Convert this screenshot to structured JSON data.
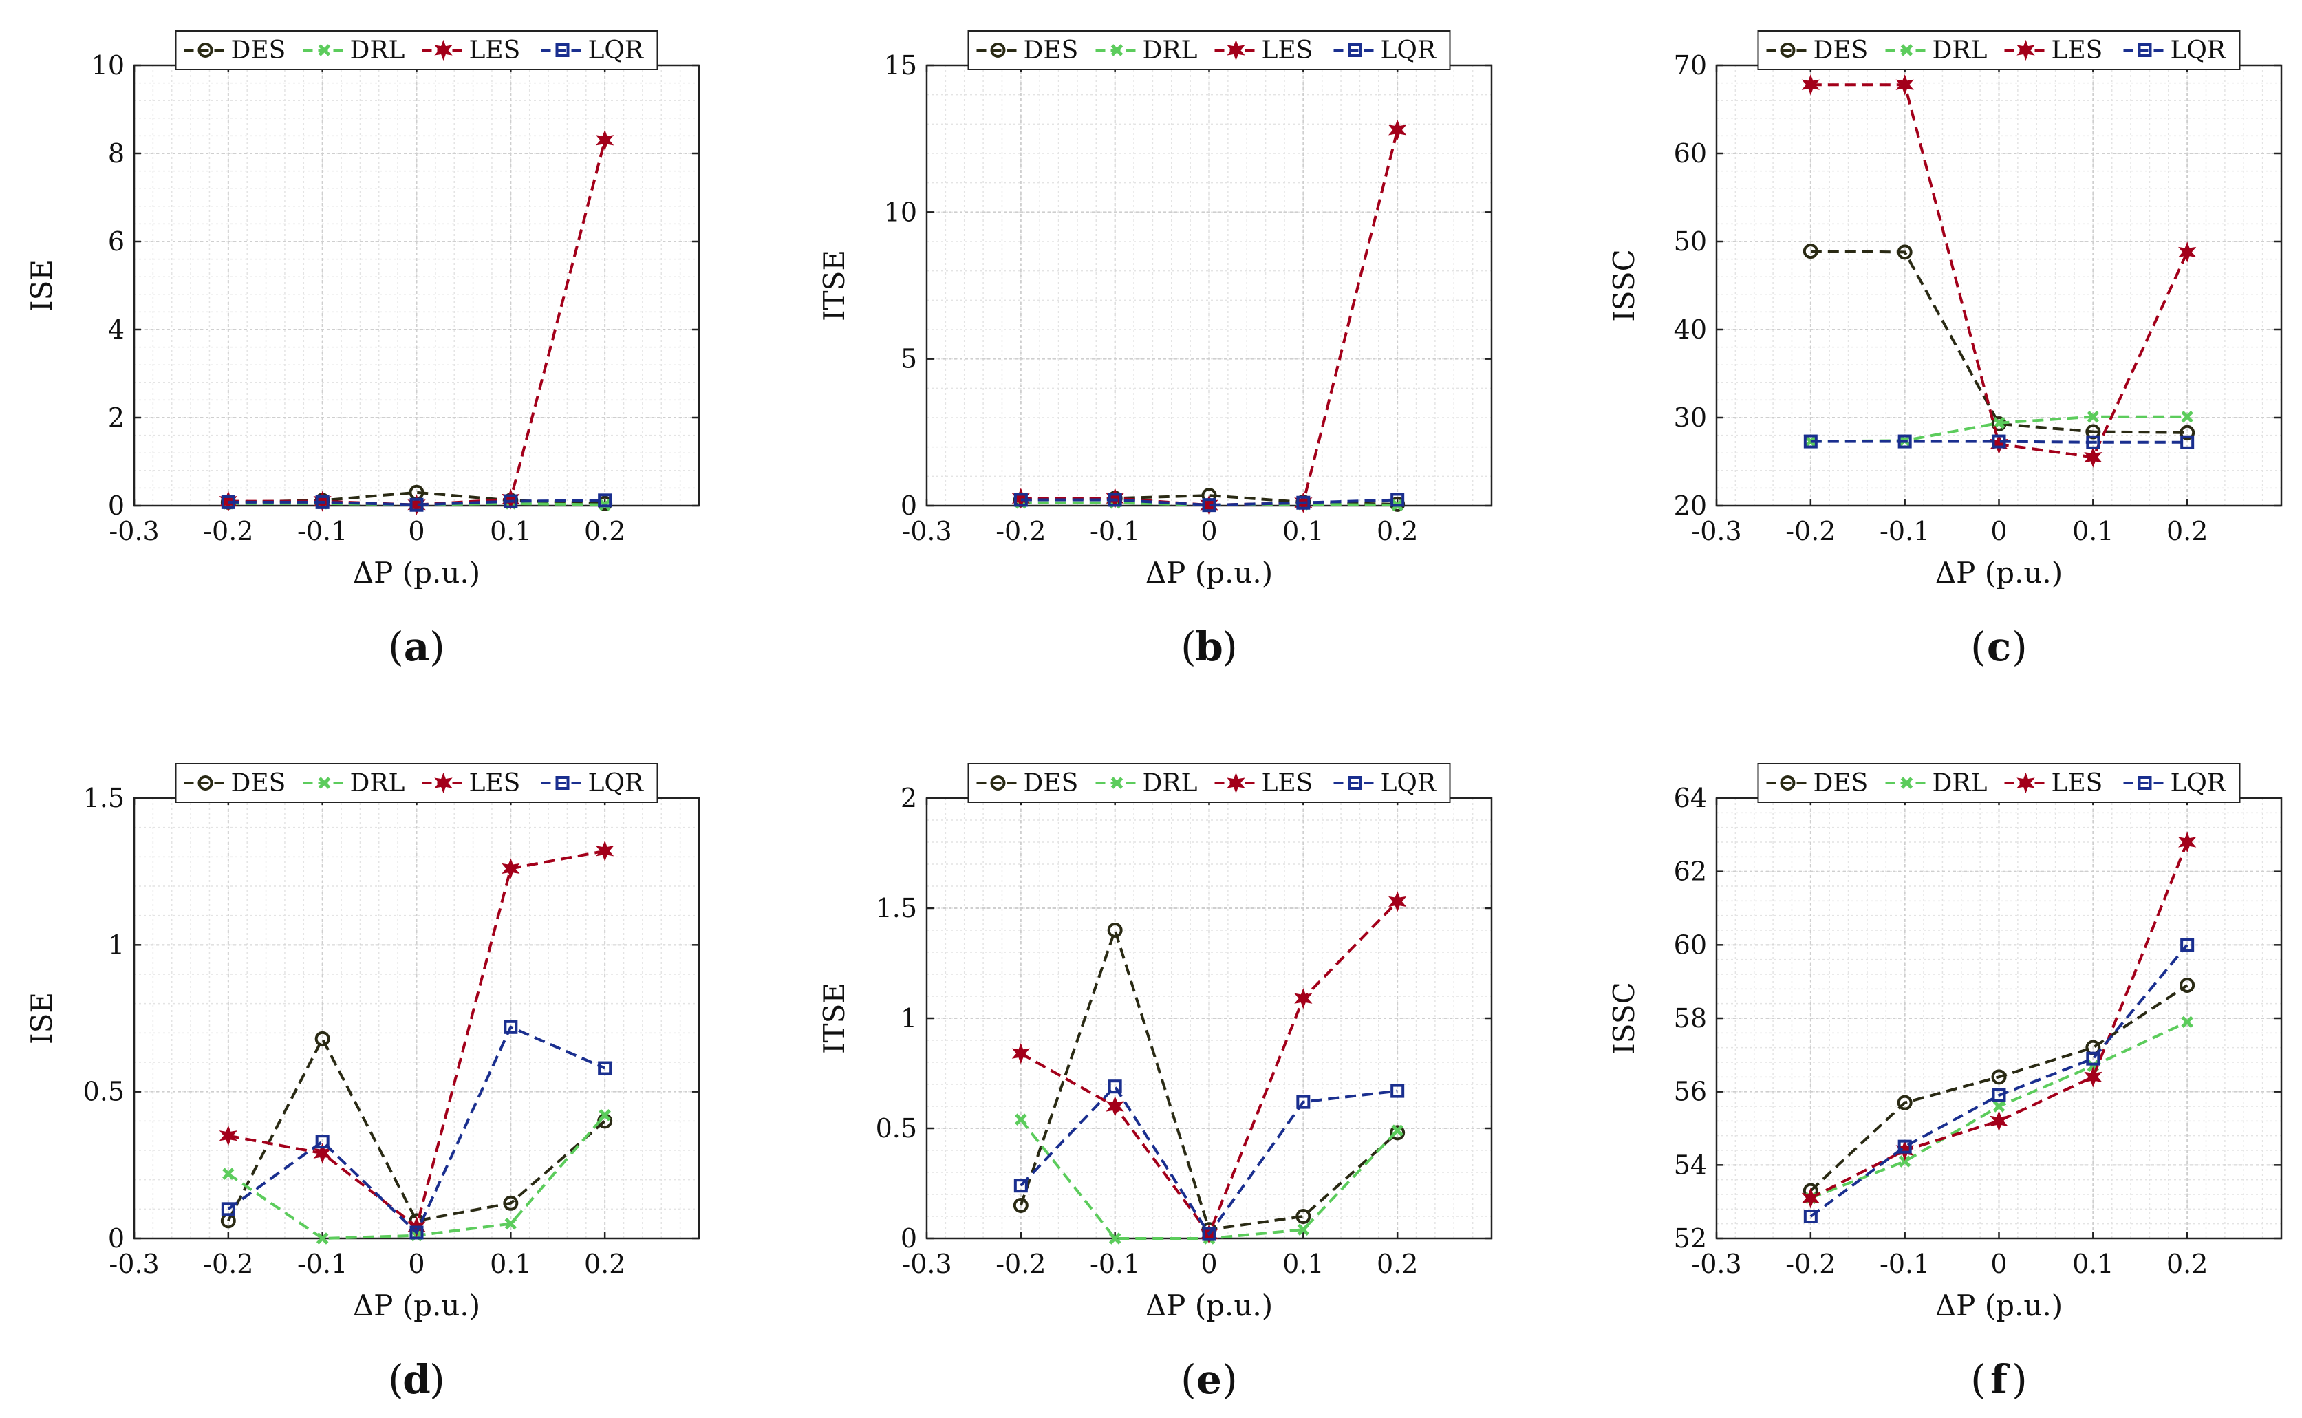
{
  "figure": {
    "xlabel": "ΔP (p.u.)"
  },
  "legend_colors": {
    "DES": "#2a2a14",
    "DRL": "#5ccc5c",
    "LES": "#a3001a",
    "LQR": "#1a2f8f"
  },
  "chart_data": [
    {
      "type": "line",
      "panel": "a",
      "caption_letter": "a",
      "title": "",
      "xlabel": "ΔP (p.u.)",
      "ylabel": "ISE",
      "xlim": [
        -0.3,
        0.3
      ],
      "ylim": [
        0,
        10
      ],
      "xticks": [
        -0.3,
        -0.2,
        -0.1,
        0,
        0.1,
        0.2
      ],
      "xtick_labels": [
        "-0.3",
        "-0.2",
        "-0.1",
        "0",
        "0.1",
        "0.2"
      ],
      "yticks": [
        0,
        2,
        4,
        6,
        8,
        10
      ],
      "ytick_labels": [
        "0",
        "2",
        "4",
        "6",
        "8",
        "10"
      ],
      "grid": true,
      "legend": "top",
      "x": [
        -0.2,
        -0.1,
        0,
        0.1,
        0.2
      ],
      "series": [
        {
          "name": "DES",
          "marker": "circle",
          "values": [
            0.08,
            0.12,
            0.3,
            0.12,
            0.05
          ]
        },
        {
          "name": "DRL",
          "marker": "x",
          "values": [
            0.05,
            0.05,
            0.02,
            0.05,
            0.02
          ]
        },
        {
          "name": "LES",
          "marker": "star",
          "values": [
            0.1,
            0.1,
            0.02,
            0.15,
            8.3
          ]
        },
        {
          "name": "LQR",
          "marker": "square",
          "values": [
            0.08,
            0.08,
            0.02,
            0.1,
            0.12
          ]
        }
      ]
    },
    {
      "type": "line",
      "panel": "b",
      "caption_letter": "b",
      "title": "",
      "xlabel": "ΔP (p.u.)",
      "ylabel": "ITSE",
      "xlim": [
        -0.3,
        0.3
      ],
      "ylim": [
        0,
        15
      ],
      "xticks": [
        -0.3,
        -0.2,
        -0.1,
        0,
        0.1,
        0.2
      ],
      "xtick_labels": [
        "-0.3",
        "-0.2",
        "-0.1",
        "0",
        "0.1",
        "0.2"
      ],
      "yticks": [
        0,
        5,
        10,
        15
      ],
      "ytick_labels": [
        "0",
        "5",
        "10",
        "15"
      ],
      "grid": true,
      "legend": "top",
      "x": [
        -0.2,
        -0.1,
        0,
        0.1,
        0.2
      ],
      "series": [
        {
          "name": "DES",
          "marker": "circle",
          "values": [
            0.2,
            0.25,
            0.35,
            0.12,
            0.05
          ]
        },
        {
          "name": "DRL",
          "marker": "x",
          "values": [
            0.1,
            0.1,
            0.02,
            0.05,
            0.02
          ]
        },
        {
          "name": "LES",
          "marker": "star",
          "values": [
            0.25,
            0.25,
            0.02,
            0.1,
            12.8
          ]
        },
        {
          "name": "LQR",
          "marker": "square",
          "values": [
            0.2,
            0.2,
            0.02,
            0.1,
            0.2
          ]
        }
      ]
    },
    {
      "type": "line",
      "panel": "c",
      "caption_letter": "c",
      "title": "",
      "xlabel": "ΔP (p.u.)",
      "ylabel": "ISSC",
      "xlim": [
        -0.3,
        0.3
      ],
      "ylim": [
        20,
        70
      ],
      "xticks": [
        -0.3,
        -0.2,
        -0.1,
        0,
        0.1,
        0.2
      ],
      "xtick_labels": [
        "-0.3",
        "-0.2",
        "-0.1",
        "0",
        "0.1",
        "0.2"
      ],
      "yticks": [
        20,
        30,
        40,
        50,
        60,
        70
      ],
      "ytick_labels": [
        "20",
        "30",
        "40",
        "50",
        "60",
        "70"
      ],
      "grid": true,
      "legend": "top",
      "x": [
        -0.2,
        -0.1,
        0,
        0.1,
        0.2
      ],
      "series": [
        {
          "name": "DES",
          "marker": "circle",
          "values": [
            48.9,
            48.8,
            29.3,
            28.4,
            28.3
          ]
        },
        {
          "name": "DRL",
          "marker": "x",
          "values": [
            27.3,
            27.4,
            29.4,
            30.1,
            30.1
          ]
        },
        {
          "name": "LES",
          "marker": "star",
          "values": [
            67.8,
            67.8,
            27.0,
            25.5,
            48.8
          ]
        },
        {
          "name": "LQR",
          "marker": "square",
          "values": [
            27.3,
            27.3,
            27.3,
            27.2,
            27.2
          ]
        }
      ]
    },
    {
      "type": "line",
      "panel": "d",
      "caption_letter": "d",
      "title": "",
      "xlabel": "ΔP (p.u.)",
      "ylabel": "ISE",
      "xlim": [
        -0.3,
        0.3
      ],
      "ylim": [
        0,
        1.5
      ],
      "xticks": [
        -0.3,
        -0.2,
        -0.1,
        0,
        0.1,
        0.2
      ],
      "xtick_labels": [
        "-0.3",
        "-0.2",
        "-0.1",
        "0",
        "0.1",
        "0.2"
      ],
      "yticks": [
        0,
        0.5,
        1,
        1.5
      ],
      "ytick_labels": [
        "0",
        "0.5",
        "1",
        "1.5"
      ],
      "grid": true,
      "legend": "top",
      "x": [
        -0.2,
        -0.1,
        0,
        0.1,
        0.2
      ],
      "series": [
        {
          "name": "DES",
          "marker": "circle",
          "values": [
            0.06,
            0.68,
            0.06,
            0.12,
            0.4
          ]
        },
        {
          "name": "DRL",
          "marker": "x",
          "values": [
            0.22,
            0.0,
            0.01,
            0.05,
            0.42
          ]
        },
        {
          "name": "LES",
          "marker": "star",
          "values": [
            0.35,
            0.29,
            0.04,
            1.26,
            1.32
          ]
        },
        {
          "name": "LQR",
          "marker": "square",
          "values": [
            0.1,
            0.33,
            0.02,
            0.72,
            0.58
          ]
        }
      ]
    },
    {
      "type": "line",
      "panel": "e",
      "caption_letter": "e",
      "title": "",
      "xlabel": "ΔP (p.u.)",
      "ylabel": "ITSE",
      "xlim": [
        -0.3,
        0.3
      ],
      "ylim": [
        0,
        2
      ],
      "xticks": [
        -0.3,
        -0.2,
        -0.1,
        0,
        0.1,
        0.2
      ],
      "xtick_labels": [
        "-0.3",
        "-0.2",
        "-0.1",
        "0",
        "0.1",
        "0.2"
      ],
      "yticks": [
        0,
        0.5,
        1,
        1.5,
        2
      ],
      "ytick_labels": [
        "0",
        "0.5",
        "1",
        "1.5",
        "2"
      ],
      "grid": true,
      "legend": "top",
      "x": [
        -0.2,
        -0.1,
        0,
        0.1,
        0.2
      ],
      "series": [
        {
          "name": "DES",
          "marker": "circle",
          "values": [
            0.15,
            1.4,
            0.04,
            0.1,
            0.48
          ]
        },
        {
          "name": "DRL",
          "marker": "x",
          "values": [
            0.54,
            0.0,
            0.0,
            0.04,
            0.49
          ]
        },
        {
          "name": "LES",
          "marker": "star",
          "values": [
            0.84,
            0.6,
            0.02,
            1.09,
            1.53
          ]
        },
        {
          "name": "LQR",
          "marker": "square",
          "values": [
            0.24,
            0.69,
            0.02,
            0.62,
            0.67
          ]
        }
      ]
    },
    {
      "type": "line",
      "panel": "f",
      "caption_letter": "f",
      "title": "",
      "xlabel": "ΔP (p.u.)",
      "ylabel": "ISSC",
      "xlim": [
        -0.3,
        0.3
      ],
      "ylim": [
        52,
        64
      ],
      "xticks": [
        -0.3,
        -0.2,
        -0.1,
        0,
        0.1,
        0.2
      ],
      "xtick_labels": [
        "-0.3",
        "-0.2",
        "-0.1",
        "0",
        "0.1",
        "0.2"
      ],
      "yticks": [
        52,
        54,
        56,
        58,
        60,
        62,
        64
      ],
      "ytick_labels": [
        "52",
        "54",
        "56",
        "58",
        "60",
        "62",
        "64"
      ],
      "grid": true,
      "legend": "top",
      "x": [
        -0.2,
        -0.1,
        0,
        0.1,
        0.2
      ],
      "series": [
        {
          "name": "DES",
          "marker": "circle",
          "values": [
            53.3,
            55.7,
            56.4,
            57.2,
            58.9
          ]
        },
        {
          "name": "DRL",
          "marker": "x",
          "values": [
            53.1,
            54.1,
            55.6,
            56.7,
            57.9
          ]
        },
        {
          "name": "LES",
          "marker": "star",
          "values": [
            53.1,
            54.4,
            55.2,
            56.4,
            62.8
          ]
        },
        {
          "name": "LQR",
          "marker": "square",
          "values": [
            52.6,
            54.5,
            55.9,
            56.9,
            60.0
          ]
        }
      ]
    }
  ]
}
